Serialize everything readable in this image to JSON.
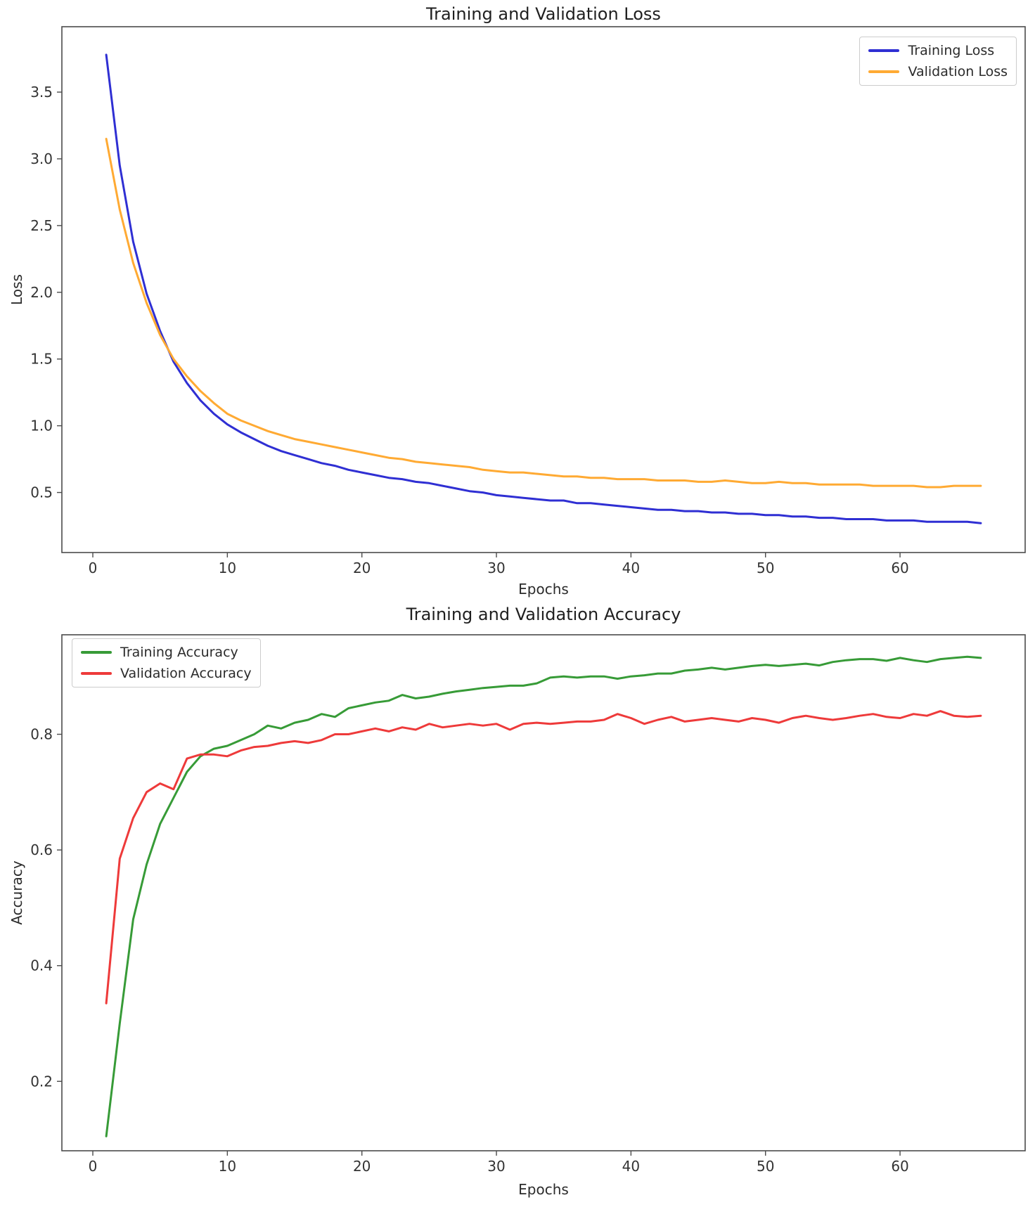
{
  "figure_background": "#ffffff",
  "chart_data": [
    {
      "type": "line",
      "title": "Training and Validation Loss",
      "xlabel": "Epochs",
      "ylabel": "Loss",
      "x_start": 1,
      "x_step": 1,
      "xlim": [
        -2.3,
        69.3
      ],
      "ylim": [
        0.05,
        3.99
      ],
      "xticks": [
        0,
        10,
        20,
        30,
        40,
        50,
        60
      ],
      "xtick_labels": [
        "0",
        "10",
        "20",
        "30",
        "40",
        "50",
        "60"
      ],
      "yticks": [
        0.5,
        1.0,
        1.5,
        2.0,
        2.5,
        3.0,
        3.5
      ],
      "ytick_labels": [
        "0.5",
        "1.0",
        "1.5",
        "2.0",
        "2.5",
        "3.0",
        "3.5"
      ],
      "grid": false,
      "legend_position": "top-right",
      "series": [
        {
          "name": "Training Loss",
          "color": "#2f2fd3",
          "values": [
            3.78,
            2.95,
            2.38,
            1.99,
            1.71,
            1.48,
            1.32,
            1.19,
            1.09,
            1.01,
            0.95,
            0.9,
            0.85,
            0.81,
            0.78,
            0.75,
            0.72,
            0.7,
            0.67,
            0.65,
            0.63,
            0.61,
            0.6,
            0.58,
            0.57,
            0.55,
            0.53,
            0.51,
            0.5,
            0.48,
            0.47,
            0.46,
            0.45,
            0.44,
            0.44,
            0.42,
            0.42,
            0.41,
            0.4,
            0.39,
            0.38,
            0.37,
            0.37,
            0.36,
            0.36,
            0.35,
            0.35,
            0.34,
            0.34,
            0.33,
            0.33,
            0.32,
            0.32,
            0.31,
            0.31,
            0.3,
            0.3,
            0.3,
            0.29,
            0.29,
            0.29,
            0.28,
            0.28,
            0.28,
            0.28,
            0.27
          ]
        },
        {
          "name": "Validation Loss",
          "color": "#ffaa33",
          "values": [
            3.15,
            2.62,
            2.22,
            1.92,
            1.68,
            1.5,
            1.37,
            1.26,
            1.17,
            1.09,
            1.04,
            1.0,
            0.96,
            0.93,
            0.9,
            0.88,
            0.86,
            0.84,
            0.82,
            0.8,
            0.78,
            0.76,
            0.75,
            0.73,
            0.72,
            0.71,
            0.7,
            0.69,
            0.67,
            0.66,
            0.65,
            0.65,
            0.64,
            0.63,
            0.62,
            0.62,
            0.61,
            0.61,
            0.6,
            0.6,
            0.6,
            0.59,
            0.59,
            0.59,
            0.58,
            0.58,
            0.59,
            0.58,
            0.57,
            0.57,
            0.58,
            0.57,
            0.57,
            0.56,
            0.56,
            0.56,
            0.56,
            0.55,
            0.55,
            0.55,
            0.55,
            0.54,
            0.54,
            0.55,
            0.55,
            0.55
          ]
        }
      ]
    },
    {
      "type": "line",
      "title": "Training and Validation Accuracy",
      "xlabel": "Epochs",
      "ylabel": "Accuracy",
      "x_start": 1,
      "x_step": 1,
      "xlim": [
        -2.3,
        69.3
      ],
      "ylim": [
        0.08,
        0.972
      ],
      "xticks": [
        0,
        10,
        20,
        30,
        40,
        50,
        60
      ],
      "xtick_labels": [
        "0",
        "10",
        "20",
        "30",
        "40",
        "50",
        "60"
      ],
      "yticks": [
        0.2,
        0.4,
        0.6,
        0.8
      ],
      "ytick_labels": [
        "0.2",
        "0.4",
        "0.6",
        "0.8"
      ],
      "grid": false,
      "legend_position": "top-left",
      "series": [
        {
          "name": "Training Accuracy",
          "color": "#379b37",
          "values": [
            0.105,
            0.3,
            0.48,
            0.575,
            0.645,
            0.69,
            0.735,
            0.762,
            0.775,
            0.78,
            0.79,
            0.8,
            0.815,
            0.81,
            0.82,
            0.825,
            0.835,
            0.83,
            0.845,
            0.85,
            0.855,
            0.858,
            0.868,
            0.862,
            0.865,
            0.87,
            0.874,
            0.877,
            0.88,
            0.882,
            0.884,
            0.884,
            0.888,
            0.898,
            0.9,
            0.898,
            0.9,
            0.9,
            0.896,
            0.9,
            0.902,
            0.905,
            0.905,
            0.91,
            0.912,
            0.915,
            0.912,
            0.915,
            0.918,
            0.92,
            0.918,
            0.92,
            0.922,
            0.919,
            0.925,
            0.928,
            0.93,
            0.93,
            0.927,
            0.932,
            0.928,
            0.925,
            0.93,
            0.932,
            0.934,
            0.932
          ]
        },
        {
          "name": "Validation Accuracy",
          "color": "#ee3a3a",
          "values": [
            0.335,
            0.585,
            0.655,
            0.7,
            0.715,
            0.705,
            0.758,
            0.765,
            0.765,
            0.762,
            0.772,
            0.778,
            0.78,
            0.785,
            0.788,
            0.785,
            0.79,
            0.8,
            0.8,
            0.805,
            0.81,
            0.805,
            0.812,
            0.808,
            0.818,
            0.812,
            0.815,
            0.818,
            0.815,
            0.818,
            0.808,
            0.818,
            0.82,
            0.818,
            0.82,
            0.822,
            0.822,
            0.825,
            0.835,
            0.828,
            0.818,
            0.825,
            0.83,
            0.822,
            0.825,
            0.828,
            0.825,
            0.822,
            0.828,
            0.825,
            0.82,
            0.828,
            0.832,
            0.828,
            0.825,
            0.828,
            0.832,
            0.835,
            0.83,
            0.828,
            0.835,
            0.832,
            0.84,
            0.832,
            0.83,
            0.832
          ]
        }
      ]
    }
  ]
}
